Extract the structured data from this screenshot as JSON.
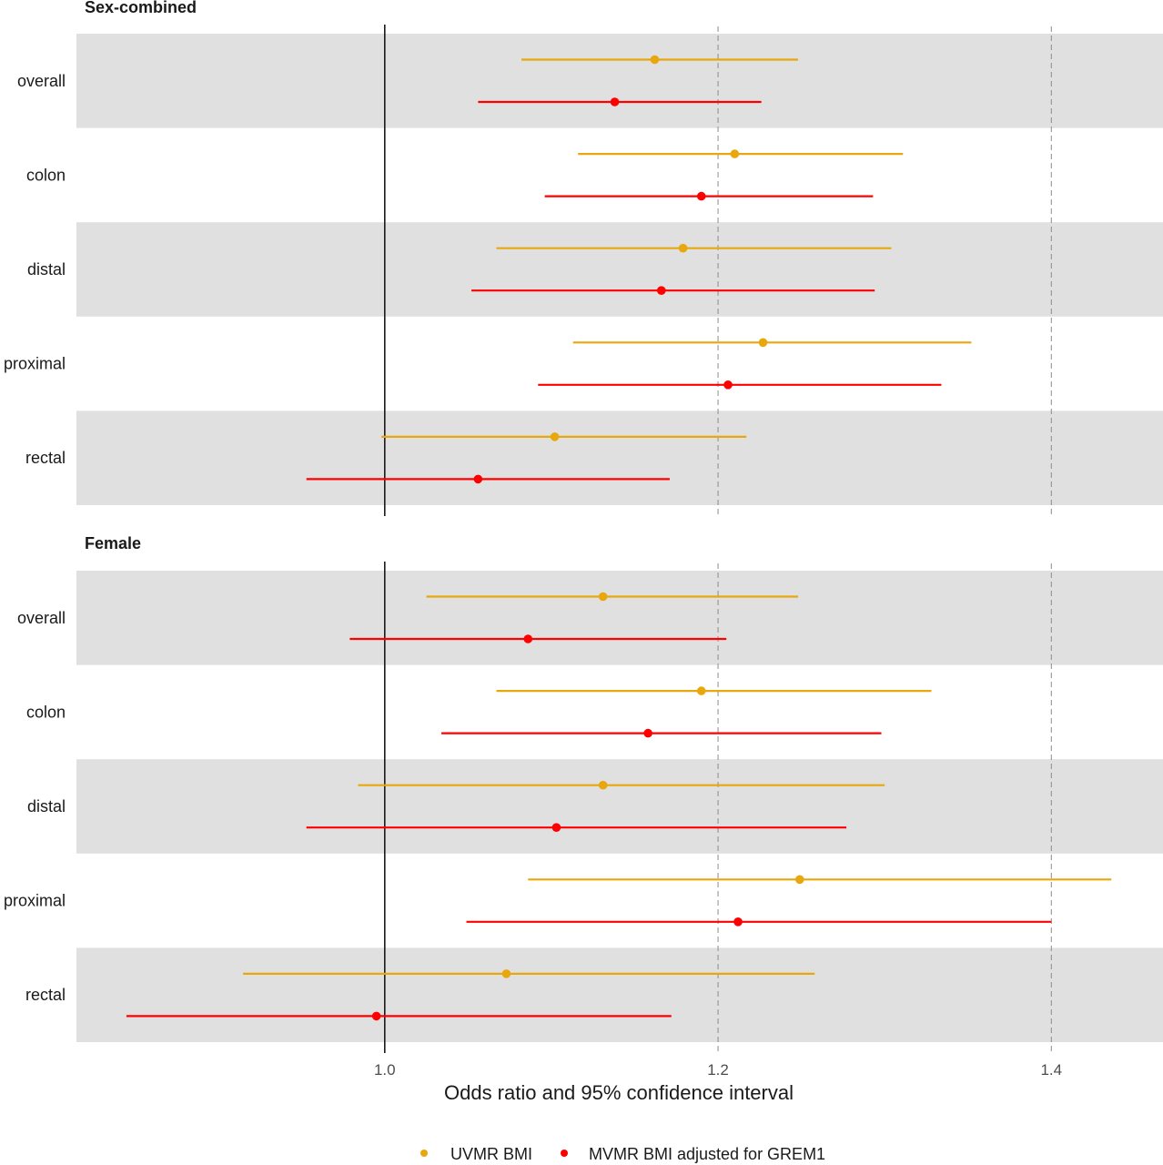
{
  "chart_data": {
    "type": "forest",
    "xlabel": "Odds ratio and 95% confidence interval",
    "xlim": [
      0.815,
      1.467
    ],
    "xticks": [
      1.0,
      1.2,
      1.4
    ],
    "xtick_labels": [
      "1.0",
      "1.2",
      "1.4"
    ],
    "reference_line": 1.0,
    "dashed_gridlines": [
      1.2,
      1.4
    ],
    "legend": {
      "position": "bottom",
      "items": [
        {
          "name": "UVMR BMI",
          "color": "#E8A70C"
        },
        {
          "name": "MVMR BMI adjusted for GREM1",
          "color": "#FF0000"
        }
      ]
    },
    "panels": [
      {
        "title": "Sex-combined",
        "rows": [
          {
            "label": "overall",
            "uvmr": {
              "or": 1.162,
              "lo": 1.082,
              "hi": 1.248
            },
            "mvmr": {
              "or": 1.138,
              "lo": 1.056,
              "hi": 1.226
            }
          },
          {
            "label": "colon",
            "uvmr": {
              "or": 1.21,
              "lo": 1.116,
              "hi": 1.311
            },
            "mvmr": {
              "or": 1.19,
              "lo": 1.096,
              "hi": 1.293
            }
          },
          {
            "label": "distal",
            "uvmr": {
              "or": 1.179,
              "lo": 1.067,
              "hi": 1.304
            },
            "mvmr": {
              "or": 1.166,
              "lo": 1.052,
              "hi": 1.294
            }
          },
          {
            "label": "proximal",
            "uvmr": {
              "or": 1.227,
              "lo": 1.113,
              "hi": 1.352
            },
            "mvmr": {
              "or": 1.206,
              "lo": 1.092,
              "hi": 1.334
            }
          },
          {
            "label": "rectal",
            "uvmr": {
              "or": 1.102,
              "lo": 0.998,
              "hi": 1.217
            },
            "mvmr": {
              "or": 1.056,
              "lo": 0.953,
              "hi": 1.171
            }
          }
        ]
      },
      {
        "title": "Female",
        "rows": [
          {
            "label": "overall",
            "uvmr": {
              "or": 1.131,
              "lo": 1.025,
              "hi": 1.248
            },
            "mvmr": {
              "or": 1.086,
              "lo": 0.979,
              "hi": 1.205
            }
          },
          {
            "label": "colon",
            "uvmr": {
              "or": 1.19,
              "lo": 1.067,
              "hi": 1.328
            },
            "mvmr": {
              "or": 1.158,
              "lo": 1.034,
              "hi": 1.298
            }
          },
          {
            "label": "distal",
            "uvmr": {
              "or": 1.131,
              "lo": 0.984,
              "hi": 1.3
            },
            "mvmr": {
              "or": 1.103,
              "lo": 0.953,
              "hi": 1.277
            }
          },
          {
            "label": "proximal",
            "uvmr": {
              "or": 1.249,
              "lo": 1.086,
              "hi": 1.436
            },
            "mvmr": {
              "or": 1.212,
              "lo": 1.049,
              "hi": 1.4
            }
          },
          {
            "label": "rectal",
            "uvmr": {
              "or": 1.073,
              "lo": 0.915,
              "hi": 1.258
            },
            "mvmr": {
              "or": 0.995,
              "lo": 0.845,
              "hi": 1.172
            }
          }
        ]
      }
    ]
  }
}
